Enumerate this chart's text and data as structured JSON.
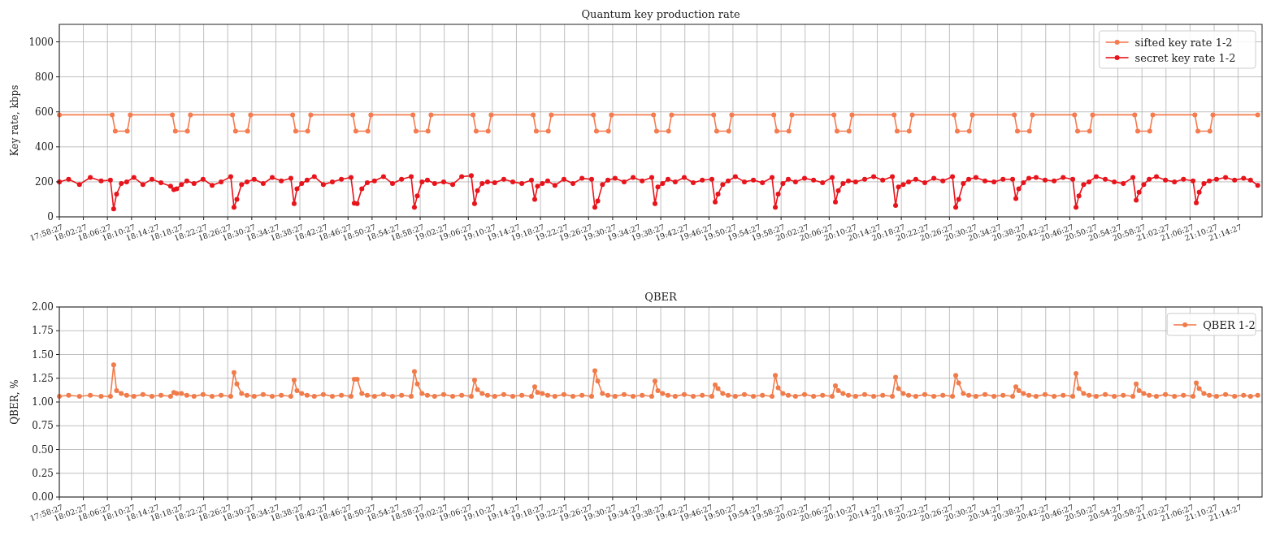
{
  "chart_data": [
    {
      "type": "line",
      "title": "Quantum key production rate",
      "ylabel": "Key rate, kbps",
      "xlim": [
        17.9742,
        21.307
      ],
      "ylim": [
        0,
        1100
      ],
      "yticks": [
        0,
        200,
        400,
        600,
        800,
        1000
      ],
      "xticks": [
        {
          "value": 17.9742,
          "label": "17:58:27"
        },
        {
          "value": 18.0408,
          "label": "18:02:27"
        },
        {
          "value": 18.1075,
          "label": "18:06:27"
        },
        {
          "value": 18.1742,
          "label": "18:10:27"
        },
        {
          "value": 18.2408,
          "label": "18:14:27"
        },
        {
          "value": 18.3075,
          "label": "18:18:27"
        },
        {
          "value": 18.3742,
          "label": "18:22:27"
        },
        {
          "value": 18.4408,
          "label": "18:26:27"
        },
        {
          "value": 18.5075,
          "label": "18:30:27"
        },
        {
          "value": 18.5742,
          "label": "18:34:27"
        },
        {
          "value": 18.6408,
          "label": "18:38:27"
        },
        {
          "value": 18.7075,
          "label": "18:42:27"
        },
        {
          "value": 18.7742,
          "label": "18:46:27"
        },
        {
          "value": 18.8408,
          "label": "18:50:27"
        },
        {
          "value": 18.9075,
          "label": "18:54:27"
        },
        {
          "value": 18.9742,
          "label": "18:58:27"
        },
        {
          "value": 19.0408,
          "label": "19:02:27"
        },
        {
          "value": 19.1075,
          "label": "19:06:27"
        },
        {
          "value": 19.1742,
          "label": "19:10:27"
        },
        {
          "value": 19.2408,
          "label": "19:14:27"
        },
        {
          "value": 19.3075,
          "label": "19:18:27"
        },
        {
          "value": 19.3742,
          "label": "19:22:27"
        },
        {
          "value": 19.4408,
          "label": "19:26:27"
        },
        {
          "value": 19.5075,
          "label": "19:30:27"
        },
        {
          "value": 19.5742,
          "label": "19:34:27"
        },
        {
          "value": 19.6408,
          "label": "19:38:27"
        },
        {
          "value": 19.7075,
          "label": "19:42:27"
        },
        {
          "value": 19.7742,
          "label": "19:46:27"
        },
        {
          "value": 19.8408,
          "label": "19:50:27"
        },
        {
          "value": 19.9075,
          "label": "19:54:27"
        },
        {
          "value": 19.9742,
          "label": "19:58:27"
        },
        {
          "value": 20.0408,
          "label": "20:02:27"
        },
        {
          "value": 20.1075,
          "label": "20:06:27"
        },
        {
          "value": 20.1742,
          "label": "20:10:27"
        },
        {
          "value": 20.2408,
          "label": "20:14:27"
        },
        {
          "value": 20.3075,
          "label": "20:18:27"
        },
        {
          "value": 20.3742,
          "label": "20:22:27"
        },
        {
          "value": 20.4408,
          "label": "20:26:27"
        },
        {
          "value": 20.5075,
          "label": "20:30:27"
        },
        {
          "value": 20.5742,
          "label": "20:34:27"
        },
        {
          "value": 20.6408,
          "label": "20:38:27"
        },
        {
          "value": 20.7075,
          "label": "20:42:27"
        },
        {
          "value": 20.7742,
          "label": "20:46:27"
        },
        {
          "value": 20.8408,
          "label": "20:50:27"
        },
        {
          "value": 20.9075,
          "label": "20:54:27"
        },
        {
          "value": 20.9742,
          "label": "20:58:27"
        },
        {
          "value": 21.0408,
          "label": "21:02:27"
        },
        {
          "value": 21.1075,
          "label": "21:06:27"
        },
        {
          "value": 21.1742,
          "label": "21:10:27"
        },
        {
          "value": 21.2408,
          "label": "21:14:27"
        }
      ],
      "grid": true,
      "legend": "top right",
      "marker": "circle",
      "line_style": "solid",
      "series": [
        {
          "name": "sifted key rate 1-2",
          "color": "#f47c50",
          "x": [
            17.9742,
            18.1208,
            18.1292,
            18.1625,
            18.1708,
            18.2875,
            18.2958,
            18.3292,
            18.3375,
            18.4542,
            18.4625,
            18.4958,
            18.5042,
            18.6208,
            18.6292,
            18.6625,
            18.6708,
            18.7875,
            18.7958,
            18.8292,
            18.8375,
            18.9542,
            18.9625,
            18.9958,
            19.0042,
            19.1208,
            19.1292,
            19.1625,
            19.1708,
            19.2875,
            19.2958,
            19.3292,
            19.3375,
            19.4542,
            19.4625,
            19.4958,
            19.5042,
            19.6208,
            19.6292,
            19.6625,
            19.6708,
            19.7875,
            19.7958,
            19.8292,
            19.8375,
            19.9542,
            19.9625,
            19.9958,
            20.0042,
            20.1208,
            20.1292,
            20.1625,
            20.1708,
            20.2875,
            20.2958,
            20.3292,
            20.3375,
            20.4542,
            20.4625,
            20.4958,
            20.5042,
            20.6208,
            20.6292,
            20.6625,
            20.6708,
            20.7875,
            20.7958,
            20.8292,
            20.8375,
            20.9542,
            20.9625,
            20.9958,
            21.0042,
            21.1208,
            21.1292,
            21.1625,
            21.1708,
            21.295
          ],
          "values": [
            583,
            583,
            490,
            490,
            583,
            583,
            490,
            490,
            583,
            583,
            490,
            490,
            583,
            583,
            490,
            490,
            583,
            583,
            490,
            490,
            583,
            583,
            490,
            490,
            583,
            583,
            490,
            490,
            583,
            583,
            490,
            490,
            583,
            583,
            490,
            490,
            583,
            583,
            490,
            490,
            583,
            583,
            490,
            490,
            583,
            583,
            490,
            490,
            583,
            583,
            490,
            490,
            583,
            583,
            490,
            490,
            583,
            583,
            490,
            490,
            583,
            583,
            490,
            490,
            583,
            583,
            490,
            490,
            583,
            583,
            490,
            490,
            583,
            583,
            490,
            490,
            583,
            583
          ]
        },
        {
          "name": "secret key rate 1-2",
          "color": "#e8141c",
          "x": [
            17.9742,
            18,
            18.03,
            18.06,
            18.09,
            18.1158,
            18.1248,
            18.1328,
            18.1458,
            18.1608,
            18.1808,
            18.2058,
            18.2308,
            18.2558,
            18.2825,
            18.2915,
            18.2995,
            18.3125,
            18.3275,
            18.3475,
            18.3725,
            18.3975,
            18.4225,
            18.4492,
            18.4582,
            18.4662,
            18.4792,
            18.4942,
            18.5142,
            18.5392,
            18.5642,
            18.5892,
            18.6158,
            18.6248,
            18.6328,
            18.6458,
            18.6608,
            18.6808,
            18.7058,
            18.7308,
            18.7558,
            18.7825,
            18.7915,
            18.7995,
            18.8125,
            18.8275,
            18.8475,
            18.8725,
            18.8975,
            18.9225,
            18.9492,
            18.9582,
            18.9662,
            18.9792,
            18.9942,
            19.0142,
            19.0392,
            19.0642,
            19.0892,
            19.1158,
            19.1248,
            19.1328,
            19.1458,
            19.1608,
            19.1808,
            19.2058,
            19.2308,
            19.2558,
            19.2825,
            19.2915,
            19.2995,
            19.3125,
            19.3275,
            19.3475,
            19.3725,
            19.3975,
            19.4225,
            19.4492,
            19.4582,
            19.4662,
            19.4792,
            19.4942,
            19.5142,
            19.5392,
            19.5642,
            19.5892,
            19.6158,
            19.6248,
            19.6328,
            19.6458,
            19.6608,
            19.6808,
            19.7058,
            19.7308,
            19.7558,
            19.7825,
            19.7915,
            19.7995,
            19.8125,
            19.8275,
            19.8475,
            19.8725,
            19.8975,
            19.9225,
            19.9492,
            19.9582,
            19.9662,
            19.9792,
            19.9942,
            20.0142,
            20.0392,
            20.0642,
            20.0892,
            20.1158,
            20.1248,
            20.1328,
            20.1458,
            20.1608,
            20.1808,
            20.2058,
            20.2308,
            20.2558,
            20.2825,
            20.2915,
            20.2995,
            20.3125,
            20.3275,
            20.3475,
            20.3725,
            20.3975,
            20.4225,
            20.4492,
            20.4582,
            20.4662,
            20.4792,
            20.4942,
            20.5142,
            20.5392,
            20.5642,
            20.5892,
            20.6158,
            20.6248,
            20.6328,
            20.6458,
            20.6608,
            20.6808,
            20.7058,
            20.7308,
            20.7558,
            20.7825,
            20.7915,
            20.7995,
            20.8125,
            20.8275,
            20.8475,
            20.8725,
            20.8975,
            20.9225,
            20.9492,
            20.9582,
            20.9662,
            20.9792,
            20.9942,
            21.0142,
            21.0392,
            21.0642,
            21.0892,
            21.1158,
            21.1248,
            21.1328,
            21.1458,
            21.1608,
            21.1808,
            21.2058,
            21.2308,
            21.2558,
            21.275,
            21.295
          ],
          "values": [
            200,
            215,
            185,
            225,
            205,
            210,
            45,
            130,
            190,
            200,
            225,
            185,
            215,
            195,
            175,
            155,
            160,
            185,
            205,
            190,
            215,
            180,
            200,
            230,
            55,
            100,
            185,
            200,
            215,
            190,
            225,
            205,
            220,
            75,
            160,
            190,
            210,
            230,
            185,
            200,
            215,
            225,
            78,
            75,
            160,
            195,
            205,
            230,
            190,
            215,
            230,
            55,
            120,
            200,
            210,
            190,
            200,
            185,
            230,
            235,
            75,
            150,
            190,
            200,
            195,
            215,
            200,
            190,
            210,
            100,
            175,
            190,
            205,
            180,
            215,
            190,
            220,
            215,
            55,
            90,
            185,
            210,
            220,
            200,
            225,
            205,
            225,
            75,
            170,
            190,
            215,
            200,
            225,
            195,
            210,
            215,
            85,
            130,
            185,
            205,
            230,
            200,
            210,
            195,
            225,
            55,
            130,
            190,
            215,
            200,
            220,
            210,
            195,
            225,
            85,
            150,
            190,
            205,
            200,
            215,
            230,
            210,
            230,
            65,
            170,
            185,
            200,
            215,
            195,
            220,
            205,
            230,
            55,
            100,
            190,
            215,
            225,
            205,
            200,
            215,
            215,
            105,
            160,
            195,
            220,
            225,
            210,
            205,
            225,
            215,
            55,
            120,
            185,
            200,
            230,
            215,
            200,
            190,
            225,
            95,
            140,
            185,
            215,
            230,
            210,
            200,
            215,
            205,
            80,
            140,
            190,
            205,
            215,
            225,
            210,
            220,
            210,
            180
          ]
        }
      ]
    },
    {
      "type": "line",
      "title": "QBER",
      "ylabel": "QBER, %",
      "xlim": [
        17.9742,
        21.307
      ],
      "ylim": [
        0,
        2
      ],
      "yticks": [
        {
          "value": 0,
          "label": "0.00"
        },
        {
          "value": 0.25,
          "label": "0.25"
        },
        {
          "value": 0.5,
          "label": "0.50"
        },
        {
          "value": 0.75,
          "label": "0.75"
        },
        {
          "value": 1,
          "label": "1.00"
        },
        {
          "value": 1.25,
          "label": "1.25"
        },
        {
          "value": 1.5,
          "label": "1.50"
        },
        {
          "value": 1.75,
          "label": "1.75"
        },
        {
          "value": 2,
          "label": "2.00"
        }
      ],
      "xticks": [
        {
          "value": 17.9742,
          "label": "17:58:27"
        },
        {
          "value": 18.0408,
          "label": "18:02:27"
        },
        {
          "value": 18.1075,
          "label": "18:06:27"
        },
        {
          "value": 18.1742,
          "label": "18:10:27"
        },
        {
          "value": 18.2408,
          "label": "18:14:27"
        },
        {
          "value": 18.3075,
          "label": "18:18:27"
        },
        {
          "value": 18.3742,
          "label": "18:22:27"
        },
        {
          "value": 18.4408,
          "label": "18:26:27"
        },
        {
          "value": 18.5075,
          "label": "18:30:27"
        },
        {
          "value": 18.5742,
          "label": "18:34:27"
        },
        {
          "value": 18.6408,
          "label": "18:38:27"
        },
        {
          "value": 18.7075,
          "label": "18:42:27"
        },
        {
          "value": 18.7742,
          "label": "18:46:27"
        },
        {
          "value": 18.8408,
          "label": "18:50:27"
        },
        {
          "value": 18.9075,
          "label": "18:54:27"
        },
        {
          "value": 18.9742,
          "label": "18:58:27"
        },
        {
          "value": 19.0408,
          "label": "19:02:27"
        },
        {
          "value": 19.1075,
          "label": "19:06:27"
        },
        {
          "value": 19.1742,
          "label": "19:10:27"
        },
        {
          "value": 19.2408,
          "label": "19:14:27"
        },
        {
          "value": 19.3075,
          "label": "19:18:27"
        },
        {
          "value": 19.3742,
          "label": "19:22:27"
        },
        {
          "value": 19.4408,
          "label": "19:26:27"
        },
        {
          "value": 19.5075,
          "label": "19:30:27"
        },
        {
          "value": 19.5742,
          "label": "19:34:27"
        },
        {
          "value": 19.6408,
          "label": "19:38:27"
        },
        {
          "value": 19.7075,
          "label": "19:42:27"
        },
        {
          "value": 19.7742,
          "label": "19:46:27"
        },
        {
          "value": 19.8408,
          "label": "19:50:27"
        },
        {
          "value": 19.9075,
          "label": "19:54:27"
        },
        {
          "value": 19.9742,
          "label": "19:58:27"
        },
        {
          "value": 20.0408,
          "label": "20:02:27"
        },
        {
          "value": 20.1075,
          "label": "20:06:27"
        },
        {
          "value": 20.1742,
          "label": "20:10:27"
        },
        {
          "value": 20.2408,
          "label": "20:14:27"
        },
        {
          "value": 20.3075,
          "label": "20:18:27"
        },
        {
          "value": 20.3742,
          "label": "20:22:27"
        },
        {
          "value": 20.4408,
          "label": "20:26:27"
        },
        {
          "value": 20.5075,
          "label": "20:30:27"
        },
        {
          "value": 20.5742,
          "label": "20:34:27"
        },
        {
          "value": 20.6408,
          "label": "20:38:27"
        },
        {
          "value": 20.7075,
          "label": "20:42:27"
        },
        {
          "value": 20.7742,
          "label": "20:46:27"
        },
        {
          "value": 20.8408,
          "label": "20:50:27"
        },
        {
          "value": 20.9075,
          "label": "20:54:27"
        },
        {
          "value": 20.9742,
          "label": "20:58:27"
        },
        {
          "value": 21.0408,
          "label": "21:02:27"
        },
        {
          "value": 21.1075,
          "label": "21:06:27"
        },
        {
          "value": 21.1742,
          "label": "21:10:27"
        },
        {
          "value": 21.2408,
          "label": "21:14:27"
        }
      ],
      "grid": true,
      "legend": "top right",
      "marker": "circle",
      "line_style": "solid",
      "series": [
        {
          "name": "QBER 1-2",
          "color": "#f07c4c",
          "x": [
            17.9742,
            18,
            18.03,
            18.06,
            18.09,
            18.1158,
            18.1248,
            18.1328,
            18.1458,
            18.1608,
            18.1808,
            18.2058,
            18.2308,
            18.2558,
            18.2825,
            18.2915,
            18.2995,
            18.3125,
            18.3275,
            18.3475,
            18.3725,
            18.3975,
            18.4225,
            18.4492,
            18.4582,
            18.4662,
            18.4792,
            18.4942,
            18.5142,
            18.5392,
            18.5642,
            18.5892,
            18.6158,
            18.6248,
            18.6328,
            18.6458,
            18.6608,
            18.6808,
            18.7058,
            18.7308,
            18.7558,
            18.7825,
            18.7915,
            18.7995,
            18.8125,
            18.8275,
            18.8475,
            18.8725,
            18.8975,
            18.9225,
            18.9492,
            18.9582,
            18.9662,
            18.9792,
            18.9942,
            19.0142,
            19.0392,
            19.0642,
            19.0892,
            19.1158,
            19.1248,
            19.1328,
            19.1458,
            19.1608,
            19.1808,
            19.2058,
            19.2308,
            19.2558,
            19.2825,
            19.2915,
            19.2995,
            19.3125,
            19.3275,
            19.3475,
            19.3725,
            19.3975,
            19.4225,
            19.4492,
            19.4582,
            19.4662,
            19.4792,
            19.4942,
            19.5142,
            19.5392,
            19.5642,
            19.5892,
            19.6158,
            19.6248,
            19.6328,
            19.6458,
            19.6608,
            19.6808,
            19.7058,
            19.7308,
            19.7558,
            19.7825,
            19.7915,
            19.7995,
            19.8125,
            19.8275,
            19.8475,
            19.8725,
            19.8975,
            19.9225,
            19.9492,
            19.9582,
            19.9662,
            19.9792,
            19.9942,
            20.0142,
            20.0392,
            20.0642,
            20.0892,
            20.1158,
            20.1248,
            20.1328,
            20.1458,
            20.1608,
            20.1808,
            20.2058,
            20.2308,
            20.2558,
            20.2825,
            20.2915,
            20.2995,
            20.3125,
            20.3275,
            20.3475,
            20.3725,
            20.3975,
            20.4225,
            20.4492,
            20.4582,
            20.4662,
            20.4792,
            20.4942,
            20.5142,
            20.5392,
            20.5642,
            20.5892,
            20.6158,
            20.6248,
            20.6328,
            20.6458,
            20.6608,
            20.6808,
            20.7058,
            20.7308,
            20.7558,
            20.7825,
            20.7915,
            20.7995,
            20.8125,
            20.8275,
            20.8475,
            20.8725,
            20.8975,
            20.9225,
            20.9492,
            20.9582,
            20.9662,
            20.9792,
            20.9942,
            21.0142,
            21.0392,
            21.0642,
            21.0892,
            21.1158,
            21.1248,
            21.1328,
            21.1458,
            21.1608,
            21.1808,
            21.2058,
            21.2308,
            21.2558,
            21.275,
            21.295
          ],
          "values": [
            1.06,
            1.07,
            1.06,
            1.07,
            1.06,
            1.06,
            1.39,
            1.12,
            1.09,
            1.07,
            1.06,
            1.08,
            1.06,
            1.07,
            1.06,
            1.1,
            1.09,
            1.09,
            1.07,
            1.06,
            1.08,
            1.06,
            1.07,
            1.06,
            1.31,
            1.19,
            1.09,
            1.07,
            1.06,
            1.08,
            1.06,
            1.07,
            1.06,
            1.23,
            1.12,
            1.09,
            1.07,
            1.06,
            1.08,
            1.06,
            1.07,
            1.06,
            1.24,
            1.24,
            1.09,
            1.07,
            1.06,
            1.08,
            1.06,
            1.07,
            1.06,
            1.32,
            1.19,
            1.09,
            1.07,
            1.06,
            1.08,
            1.06,
            1.07,
            1.06,
            1.23,
            1.13,
            1.09,
            1.07,
            1.06,
            1.08,
            1.06,
            1.07,
            1.06,
            1.16,
            1.1,
            1.09,
            1.07,
            1.06,
            1.08,
            1.06,
            1.07,
            1.06,
            1.33,
            1.22,
            1.09,
            1.07,
            1.06,
            1.08,
            1.06,
            1.07,
            1.06,
            1.22,
            1.12,
            1.09,
            1.07,
            1.06,
            1.08,
            1.06,
            1.07,
            1.06,
            1.18,
            1.14,
            1.09,
            1.07,
            1.06,
            1.08,
            1.06,
            1.07,
            1.06,
            1.28,
            1.15,
            1.09,
            1.07,
            1.06,
            1.08,
            1.06,
            1.07,
            1.06,
            1.17,
            1.12,
            1.09,
            1.07,
            1.06,
            1.08,
            1.06,
            1.07,
            1.06,
            1.26,
            1.14,
            1.09,
            1.07,
            1.06,
            1.08,
            1.06,
            1.07,
            1.06,
            1.28,
            1.2,
            1.09,
            1.07,
            1.06,
            1.08,
            1.06,
            1.07,
            1.06,
            1.16,
            1.12,
            1.09,
            1.07,
            1.06,
            1.08,
            1.06,
            1.07,
            1.06,
            1.3,
            1.14,
            1.09,
            1.07,
            1.06,
            1.08,
            1.06,
            1.07,
            1.06,
            1.19,
            1.12,
            1.09,
            1.07,
            1.06,
            1.08,
            1.06,
            1.07,
            1.06,
            1.2,
            1.14,
            1.09,
            1.07,
            1.06,
            1.08,
            1.06,
            1.07,
            1.06,
            1.07
          ]
        }
      ]
    }
  ]
}
